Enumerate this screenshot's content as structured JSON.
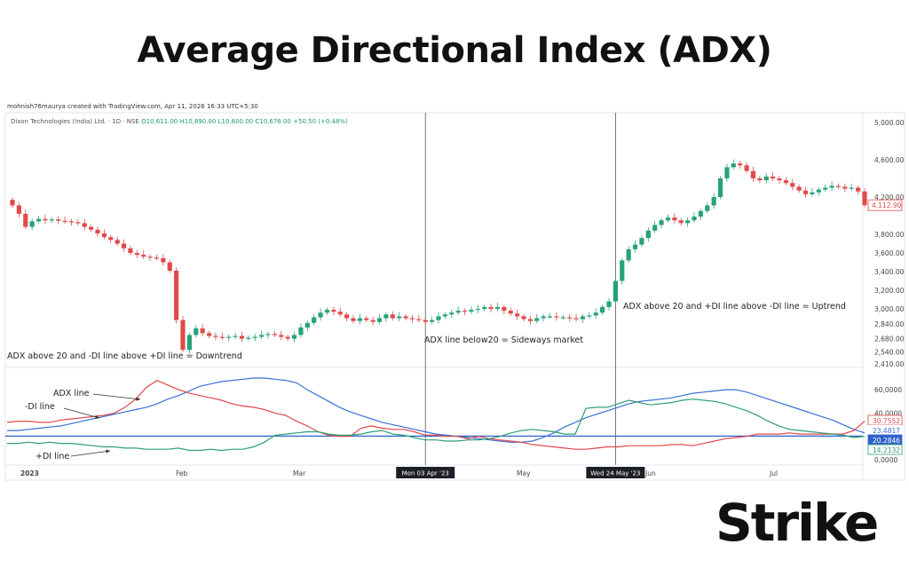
{
  "title": "Average Directional Index (ADX)",
  "credit": "mohnish76maurya created with TradingView.com, Apr 11, 2026 16:33 UTC+5:30",
  "ohlc": {
    "symbol": "Dixon Technologies (India) Ltd. · 1D · NSE",
    "o": "O10,611.00",
    "h": "H10,890.00",
    "l": "L10,600.00",
    "c": "C10,676.00",
    "chg": "+50.50 (+0.48%)"
  },
  "logo": {
    "text": "Strike"
  },
  "colors": {
    "up": "#26a17b",
    "down": "#e04a4a",
    "adx": "#3a6fd8",
    "plus_di": "#2e9e74",
    "minus_di": "#e0484a",
    "ref": "#2f62c9"
  },
  "chart_data": [
    {
      "type": "line",
      "subtype": "candlestick",
      "price_axis": {
        "ticks": [
          "5,000.00",
          "4,600.00",
          "4,200.00",
          "3,800.00",
          "3,600.00",
          "3,400.00",
          "3,200.00",
          "3,000.00",
          "2,840.00",
          "2,680.00",
          "2,540.00",
          "2,410.00"
        ],
        "last_price": "4,112.90"
      },
      "time_axis": {
        "ticks": [
          "2023",
          "Feb",
          "Mar",
          "May",
          "Jun",
          "Jul"
        ],
        "markers": [
          "Mon 03 Apr '23",
          "Wed 24 May '23"
        ]
      },
      "closes": [
        4110,
        4020,
        3880,
        3940,
        3965,
        3950,
        3960,
        3945,
        3940,
        3930,
        3920,
        3880,
        3850,
        3810,
        3770,
        3740,
        3700,
        3650,
        3600,
        3580,
        3560,
        3550,
        3545,
        3500,
        3410,
        2880,
        2560,
        2720,
        2790,
        2740,
        2710,
        2700,
        2690,
        2700,
        2710,
        2680,
        2690,
        2700,
        2720,
        2730,
        2720,
        2700,
        2680,
        2720,
        2800,
        2850,
        2910,
        2960,
        2990,
        2970,
        2940,
        2900,
        2870,
        2900,
        2880,
        2860,
        2900,
        2940,
        2900,
        2920,
        2900,
        2890,
        2880,
        2860,
        2880,
        2920,
        2940,
        2960,
        2980,
        2970,
        2990,
        3000,
        3020,
        3000,
        3020,
        2980,
        2950,
        2920,
        2890,
        2870,
        2900,
        2920,
        2920,
        2910,
        2910,
        2900,
        2890,
        2920,
        2930,
        2960,
        3020,
        3080,
        3300,
        3520,
        3640,
        3690,
        3760,
        3840,
        3900,
        3950,
        3980,
        3950,
        3920,
        3950,
        3990,
        4050,
        4110,
        4200,
        4400,
        4520,
        4560,
        4540,
        4480,
        4400,
        4380,
        4420,
        4400,
        4380,
        4350,
        4310,
        4270,
        4230,
        4250,
        4280,
        4300,
        4320,
        4310,
        4290,
        4300,
        4260,
        4113
      ],
      "annotations": [
        "ADX above 20 and -DI line above +DI line = Downtrend",
        "ADX line below20 = Sideways market",
        "ADX above 20 and +DI line above -DI line = Uptrend"
      ]
    },
    {
      "type": "line",
      "y_axis": {
        "ticks": [
          "60,0000",
          "40,0000",
          "0,0000"
        ]
      },
      "reference_line": 20.2846,
      "series": [
        {
          "name": "ADX line",
          "values": [
            25,
            25,
            26,
            27,
            28,
            29,
            31,
            33,
            35,
            37,
            39,
            41,
            43,
            45,
            48,
            52,
            55,
            59,
            63,
            65,
            67,
            68,
            69,
            70,
            70,
            69,
            68,
            66,
            60,
            55,
            50,
            45,
            41,
            38,
            35,
            32,
            30,
            28,
            26,
            24,
            22,
            21,
            20,
            19,
            18,
            17,
            16,
            15,
            15,
            16,
            19,
            23,
            28,
            32,
            36,
            39,
            42,
            45,
            48,
            50,
            51,
            52,
            53,
            55,
            57,
            58,
            59,
            60,
            60,
            58,
            55,
            52,
            49,
            46,
            43,
            40,
            37,
            34,
            30,
            26,
            23
          ]
        },
        {
          "name": "-DI line",
          "values": [
            32,
            33,
            33,
            32,
            32,
            34,
            35,
            36,
            37,
            38,
            40,
            45,
            52,
            62,
            68,
            64,
            60,
            57,
            55,
            53,
            51,
            48,
            46,
            45,
            43,
            40,
            38,
            33,
            29,
            24,
            21,
            20,
            20,
            27,
            29,
            27,
            26,
            26,
            24,
            21,
            21,
            20,
            20,
            18,
            20,
            18,
            17,
            16,
            15,
            13,
            12,
            11,
            10,
            9,
            9,
            10,
            11,
            11,
            12,
            12,
            12,
            12,
            13,
            13,
            12,
            14,
            16,
            18,
            19,
            20,
            22,
            22,
            22,
            23,
            22,
            22,
            22,
            22,
            22,
            25,
            33
          ]
        },
        {
          "name": "+DI line",
          "values": [
            14,
            14,
            15,
            14,
            15,
            14,
            14,
            13,
            12,
            11,
            11,
            10,
            10,
            9,
            9,
            9,
            10,
            8,
            8,
            9,
            8,
            9,
            9,
            11,
            15,
            21,
            22,
            23,
            24,
            24,
            22,
            21,
            21,
            22,
            24,
            25,
            22,
            21,
            19,
            17,
            17,
            16,
            16,
            17,
            17,
            18,
            20,
            23,
            25,
            26,
            25,
            24,
            22,
            22,
            44,
            45,
            45,
            48,
            51,
            49,
            47,
            48,
            49,
            51,
            52,
            51,
            50,
            48,
            45,
            42,
            38,
            33,
            29,
            26,
            25,
            24,
            23,
            22,
            21,
            19,
            20
          ]
        }
      ],
      "value_labels": [
        "30.7552",
        "23.4817",
        "20.2846",
        "14.2132"
      ]
    }
  ]
}
